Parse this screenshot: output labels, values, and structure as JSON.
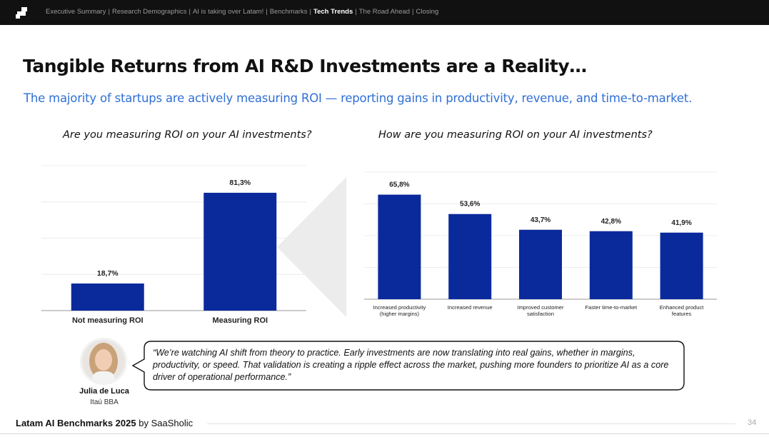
{
  "header": {
    "nav_items": [
      {
        "label": "Executive Summary",
        "active": false
      },
      {
        "label": "Research Demographics",
        "active": false
      },
      {
        "label": "AI is taking over Latam!",
        "active": false
      },
      {
        "label": "Benchmarks",
        "active": false
      },
      {
        "label": "Tech Trends",
        "active": true
      },
      {
        "label": "The Road Ahead",
        "active": false
      },
      {
        "label": "Closing",
        "active": false
      }
    ],
    "logo_icon": "pixel-steps-logo"
  },
  "page": {
    "title": "Tangible Returns from AI R&D Investments are a Reality…",
    "subtitle": "The majority of startups are actively measuring ROI — reporting gains in productivity, revenue, and time-to-market."
  },
  "colors": {
    "bar": "#0a2a9c",
    "subtitle": "#2f6fd6",
    "header_bg": "#111111"
  },
  "chart_data": [
    {
      "type": "bar",
      "title": "Are you measuring ROI on your AI investments?",
      "categories": [
        "Not measuring ROI",
        "Measuring ROI"
      ],
      "values": [
        18.7,
        81.3
      ],
      "value_labels": [
        "18,7%",
        "81,3%"
      ],
      "ylim": [
        0,
        100
      ],
      "grid": true,
      "xlabel": "",
      "ylabel": ""
    },
    {
      "type": "bar",
      "title": "How are you measuring ROI on your AI investments?",
      "categories": [
        [
          "Increased productivity",
          "(higher margins)"
        ],
        [
          "Increased revenue"
        ],
        [
          "Improved customer",
          "satisfaction"
        ],
        [
          "Faster time-to-market"
        ],
        [
          "Enhanced product",
          "features"
        ]
      ],
      "values": [
        65.8,
        53.6,
        43.7,
        42.8,
        41.9
      ],
      "value_labels": [
        "65,8%",
        "53,6%",
        "43,7%",
        "42,8%",
        "41,9%"
      ],
      "ylim": [
        0,
        80
      ],
      "grid": true,
      "xlabel": "",
      "ylabel": ""
    }
  ],
  "quote": {
    "text": "“We’re watching AI shift from theory to practice. Early investments are now translating into real gains, whether in margins, productivity, or speed. That validation is creating a ripple effect across the market, pushing more founders to prioritize AI as a core driver of operational performance.”",
    "author": "Julia de Luca",
    "organization": "Itaú BBA",
    "avatar_icon": "person-avatar"
  },
  "footer": {
    "brand": "Latam AI Benchmarks 2025",
    "by": "by SaaSholic",
    "page_number": "34"
  }
}
